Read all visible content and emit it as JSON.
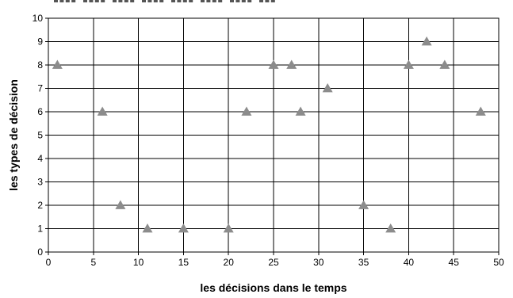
{
  "chart_data": {
    "type": "scatter",
    "title": "",
    "xlabel": "les décisions dans le temps",
    "ylabel": "les types de décision",
    "xlim": [
      0,
      50
    ],
    "ylim": [
      0,
      10
    ],
    "x_ticks": [
      "0",
      "5",
      "10",
      "15",
      "20",
      "25",
      "30",
      "35",
      "40",
      "45",
      "50"
    ],
    "y_ticks": [
      "0",
      "1",
      "2",
      "3",
      "4",
      "5",
      "6",
      "7",
      "8",
      "9",
      "10"
    ],
    "grid": true,
    "legend": "none",
    "marker": "triangle",
    "marker_color": "#8c8c8c",
    "points": [
      {
        "x": 1,
        "y": 8
      },
      {
        "x": 6,
        "y": 6
      },
      {
        "x": 8,
        "y": 2
      },
      {
        "x": 11,
        "y": 1
      },
      {
        "x": 15,
        "y": 1
      },
      {
        "x": 20,
        "y": 1
      },
      {
        "x": 22,
        "y": 6
      },
      {
        "x": 25,
        "y": 8
      },
      {
        "x": 27,
        "y": 8
      },
      {
        "x": 28,
        "y": 6
      },
      {
        "x": 31,
        "y": 7
      },
      {
        "x": 35,
        "y": 2
      },
      {
        "x": 38,
        "y": 1
      },
      {
        "x": 40,
        "y": 8
      },
      {
        "x": 42,
        "y": 9
      },
      {
        "x": 44,
        "y": 8
      },
      {
        "x": 48,
        "y": 6
      }
    ]
  }
}
